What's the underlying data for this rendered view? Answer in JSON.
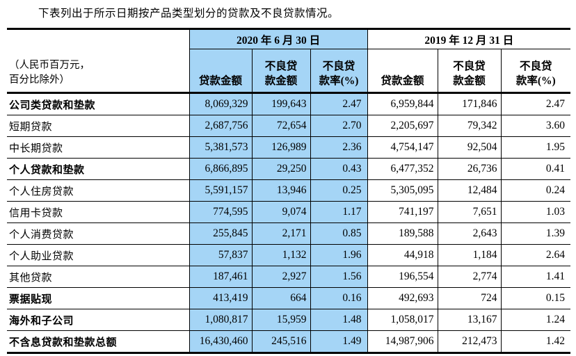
{
  "title": "下表列出于所示日期按产品类型划分的贷款及不良贷款情况。",
  "colors": {
    "highlight_blue": "#A5D5F6",
    "text": "#000000",
    "background": "#FFFFFF"
  },
  "table": {
    "unit_note": "（人民币百万元，\n百分比除外）",
    "column_groups": [
      {
        "label": "2020 年 6 月 30 日",
        "highlighted": true
      },
      {
        "label": "2019 年 12 月 31 日",
        "highlighted": false
      }
    ],
    "sub_headers": [
      "贷款金额",
      "不良贷\n款金额",
      "不良贷\n款率(%)",
      "贷款金额",
      "不良贷\n款金额",
      "不良贷\n款率(%)"
    ],
    "rows": [
      {
        "label": "公司类贷款和垫款",
        "bold": true,
        "values": [
          "8,069,329",
          "199,643",
          "2.47",
          "6,959,844",
          "171,846",
          "2.47"
        ]
      },
      {
        "label": "短期贷款",
        "bold": false,
        "values": [
          "2,687,756",
          "72,654",
          "2.70",
          "2,205,697",
          "79,342",
          "3.60"
        ]
      },
      {
        "label": "中长期贷款",
        "bold": false,
        "values": [
          "5,381,573",
          "126,989",
          "2.36",
          "4,754,147",
          "92,504",
          "1.95"
        ]
      },
      {
        "label": "个人贷款和垫款",
        "bold": true,
        "values": [
          "6,866,895",
          "29,250",
          "0.43",
          "6,477,352",
          "26,736",
          "0.41"
        ]
      },
      {
        "label": "个人住房贷款",
        "bold": false,
        "values": [
          "5,591,157",
          "13,946",
          "0.25",
          "5,305,095",
          "12,484",
          "0.24"
        ]
      },
      {
        "label": "信用卡贷款",
        "bold": false,
        "values": [
          "774,595",
          "9,074",
          "1.17",
          "741,197",
          "7,651",
          "1.03"
        ]
      },
      {
        "label": "个人消费贷款",
        "bold": false,
        "values": [
          "255,845",
          "2,171",
          "0.85",
          "189,588",
          "2,643",
          "1.39"
        ]
      },
      {
        "label": "个人助业贷款",
        "bold": false,
        "values": [
          "57,837",
          "1,132",
          "1.96",
          "44,918",
          "1,184",
          "2.64"
        ]
      },
      {
        "label": "其他贷款",
        "bold": false,
        "values": [
          "187,461",
          "2,927",
          "1.56",
          "196,554",
          "2,774",
          "1.41"
        ]
      },
      {
        "label": "票据贴现",
        "bold": true,
        "values": [
          "413,419",
          "664",
          "0.16",
          "492,693",
          "724",
          "0.15"
        ]
      },
      {
        "label": "海外和子公司",
        "bold": true,
        "values": [
          "1,080,817",
          "15,959",
          "1.48",
          "1,058,017",
          "13,167",
          "1.24"
        ]
      },
      {
        "label": "不含息贷款和垫款总额",
        "bold": true,
        "values": [
          "16,430,460",
          "245,516",
          "1.49",
          "14,987,906",
          "212,473",
          "1.42"
        ]
      }
    ]
  }
}
